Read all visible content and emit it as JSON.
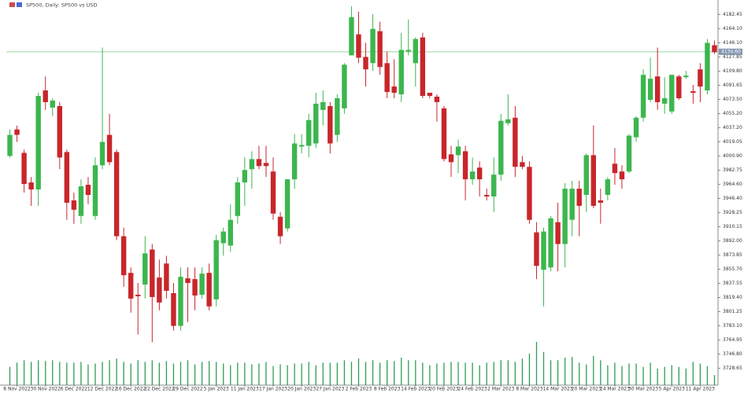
{
  "chart_data": {
    "type": "candlestick",
    "title": "SP500, Daily: SP500 vs USD",
    "up_color": "#3cb64e",
    "down_color": "#c8262b",
    "volume_color": "#2f9e52",
    "price_line_color": "#9fd49f",
    "ylim": [
      3707,
      4201
    ],
    "yticks": [
      {
        "value": 4182.45,
        "label": "4182.45"
      },
      {
        "value": 4164.1,
        "label": "4164.10"
      },
      {
        "value": 4146.1,
        "label": "4146.10"
      },
      {
        "value": 4127.85,
        "label": "4127.85"
      },
      {
        "value": 4109.8,
        "label": "4109.80"
      },
      {
        "value": 4091.65,
        "label": "4091.65"
      },
      {
        "value": 4073.5,
        "label": "4073.50"
      },
      {
        "value": 4055.2,
        "label": "4055.20"
      },
      {
        "value": 4037.2,
        "label": "4037.20"
      },
      {
        "value": 4019.05,
        "label": "4019.05"
      },
      {
        "value": 4000.9,
        "label": "4000.90"
      },
      {
        "value": 3982.75,
        "label": "3982.75"
      },
      {
        "value": 3964.6,
        "label": "3964.60"
      },
      {
        "value": 3946.4,
        "label": "3946.40"
      },
      {
        "value": 3928.25,
        "label": "3928.25"
      },
      {
        "value": 3910.15,
        "label": "3910.15"
      },
      {
        "value": 3892,
        "label": "3892.00"
      },
      {
        "value": 3873.85,
        "label": "3873.85"
      },
      {
        "value": 3855.7,
        "label": "3855.70"
      },
      {
        "value": 3837.55,
        "label": "3837.55"
      },
      {
        "value": 3819.4,
        "label": "3819.40"
      },
      {
        "value": 3801.25,
        "label": "3801.25"
      },
      {
        "value": 3783.1,
        "label": "3783.10"
      },
      {
        "value": 3764.95,
        "label": "3764.95"
      },
      {
        "value": 3746.8,
        "label": "3746.80"
      },
      {
        "value": 3728.65,
        "label": "3728.65"
      }
    ],
    "last_price": {
      "value": 4134.6,
      "label": "4134.60"
    },
    "categories": [
      null,
      "8 Nov 2022",
      null,
      null,
      null,
      "30 Nov 2022",
      null,
      null,
      null,
      "6 Dec 2022",
      null,
      null,
      null,
      "12 Dec 2022",
      null,
      null,
      null,
      "16 Dec 2022",
      null,
      null,
      null,
      "22 Dec 2022",
      null,
      null,
      null,
      "29 Dec 2022",
      null,
      null,
      null,
      "5 Jan 2023",
      null,
      null,
      null,
      "11 Jan 2023",
      null,
      null,
      null,
      "17 Jan 2023",
      null,
      null,
      null,
      "20 Jan 2023",
      null,
      null,
      null,
      "27 Jan 2023",
      null,
      null,
      null,
      "2 Feb 2023",
      null,
      null,
      null,
      "8 Feb 2023",
      null,
      null,
      null,
      "14 Feb 2023",
      null,
      null,
      null,
      "20 Feb 2023",
      null,
      null,
      null,
      "24 Feb 2023",
      null,
      null,
      null,
      "2 Mar 2023",
      null,
      null,
      null,
      "8 Mar 2023",
      null,
      null,
      null,
      "14 Mar 2023",
      null,
      null,
      null,
      "20 Mar 2023",
      null,
      null,
      null,
      "24 Mar 2023",
      null,
      null,
      null,
      "30 Mar 2023",
      null,
      null,
      null,
      "5 Apr 2023",
      null,
      null,
      null,
      "11 Apr 2023",
      null,
      null
    ],
    "ohlc": [
      [
        4001,
        4035,
        3999,
        4028
      ],
      [
        4035,
        4040,
        4019,
        4028
      ],
      [
        4005,
        4009,
        3954,
        3965
      ],
      [
        3967,
        3974,
        3937,
        3958
      ],
      [
        3958,
        4082,
        3937,
        4078
      ],
      [
        4085,
        4103,
        4060,
        4070
      ],
      [
        4063,
        4075,
        4052,
        4072
      ],
      [
        4065,
        4070,
        3984,
        3999
      ],
      [
        4006,
        4009,
        3919,
        3941
      ],
      [
        3944,
        3954,
        3914,
        3932
      ],
      [
        3924,
        3971,
        3914,
        3962
      ],
      [
        3964,
        3974,
        3939,
        3951
      ],
      [
        3924,
        3999,
        3919,
        3989
      ],
      [
        3989,
        4140,
        3984,
        4019
      ],
      [
        4028,
        4055,
        3989,
        3993
      ],
      [
        4006,
        4009,
        3893,
        3898
      ],
      [
        3898,
        3909,
        3833,
        3848
      ],
      [
        3851,
        3858,
        3800,
        3818
      ],
      [
        3823,
        3838,
        3772,
        3821
      ],
      [
        3836,
        3898,
        3818,
        3876
      ],
      [
        3881,
        3888,
        3762,
        3820
      ],
      [
        3845,
        3868,
        3803,
        3813
      ],
      [
        3863,
        3873,
        3818,
        3828
      ],
      [
        3825,
        3838,
        3777,
        3783
      ],
      [
        3783,
        3858,
        3777,
        3846
      ],
      [
        3844,
        3858,
        3788,
        3838
      ],
      [
        3843,
        3858,
        3803,
        3822
      ],
      [
        3823,
        3858,
        3818,
        3850
      ],
      [
        3851,
        3863,
        3803,
        3808
      ],
      [
        3817,
        3900,
        3808,
        3893
      ],
      [
        3889,
        3909,
        3873,
        3904
      ],
      [
        3886,
        3939,
        3878,
        3919
      ],
      [
        3924,
        3974,
        3914,
        3967
      ],
      [
        3967,
        3999,
        3937,
        3983
      ],
      [
        3984,
        4007,
        3959,
        3997
      ],
      [
        3997,
        4014,
        3984,
        3988
      ],
      [
        3992,
        4014,
        3974,
        3988
      ],
      [
        3981,
        3999,
        3919,
        3927
      ],
      [
        3923,
        3929,
        3888,
        3898
      ],
      [
        3908,
        3971,
        3904,
        3971
      ],
      [
        3971,
        4029,
        3959,
        4017
      ],
      [
        4013,
        4029,
        4004,
        4015
      ],
      [
        4014,
        4055,
        3999,
        4047
      ],
      [
        4017,
        4082,
        4011,
        4068
      ],
      [
        4060,
        4085,
        4040,
        4070
      ],
      [
        4065,
        4070,
        4004,
        4017
      ],
      [
        4028,
        4080,
        4019,
        4075
      ],
      [
        4062,
        4120,
        4055,
        4118
      ],
      [
        4130,
        4193,
        4130,
        4179
      ],
      [
        4157,
        4186,
        4120,
        4127
      ],
      [
        4128,
        4146,
        4090,
        4112
      ],
      [
        4120,
        4183,
        4110,
        4164
      ],
      [
        4161,
        4173,
        4105,
        4115
      ],
      [
        4120,
        4135,
        4075,
        4083
      ],
      [
        4090,
        4125,
        4075,
        4082
      ],
      [
        4080,
        4159,
        4070,
        4137
      ],
      [
        4135,
        4176,
        4130,
        4137
      ],
      [
        4120,
        4153,
        4090,
        4151
      ],
      [
        4153,
        4159,
        4075,
        4078
      ],
      [
        4082,
        4082,
        4075,
        4078
      ],
      [
        4077,
        4080,
        4045,
        4070
      ],
      [
        4062,
        4065,
        3994,
        3997
      ],
      [
        4003,
        4014,
        3974,
        3993
      ],
      [
        4002,
        4022,
        3979,
        4013
      ],
      [
        4007,
        4014,
        3944,
        3971
      ],
      [
        3971,
        3999,
        3964,
        3981
      ],
      [
        3986,
        3994,
        3949,
        3971
      ],
      [
        3951,
        3959,
        3944,
        3949
      ],
      [
        3949,
        3999,
        3929,
        3977
      ],
      [
        3977,
        4055,
        3969,
        4046
      ],
      [
        4043,
        4080,
        4040,
        4048
      ],
      [
        4050,
        4065,
        3974,
        3987
      ],
      [
        3993,
        4001,
        3984,
        3987
      ],
      [
        3987,
        3994,
        3914,
        3919
      ],
      [
        3903,
        3916,
        3843,
        3860
      ],
      [
        3855,
        3909,
        3808,
        3904
      ],
      [
        3858,
        3924,
        3853,
        3921
      ],
      [
        3916,
        3941,
        3853,
        3888
      ],
      [
        3888,
        3966,
        3858,
        3959
      ],
      [
        3919,
        3969,
        3898,
        3959
      ],
      [
        3959,
        3969,
        3898,
        3937
      ],
      [
        3951,
        4004,
        3929,
        4002
      ],
      [
        4002,
        4040,
        3934,
        3937
      ],
      [
        3944,
        3959,
        3914,
        3941
      ],
      [
        3951,
        3974,
        3944,
        3971
      ],
      [
        3991,
        4011,
        3964,
        3979
      ],
      [
        3981,
        3989,
        3959,
        3971
      ],
      [
        3981,
        4029,
        3979,
        4027
      ],
      [
        4025,
        4052,
        4019,
        4050
      ],
      [
        4050,
        4112,
        4045,
        4105
      ],
      [
        4073,
        4127,
        4070,
        4100
      ],
      [
        4103,
        4140,
        4060,
        4070
      ],
      [
        4068,
        4102,
        4055,
        4075
      ],
      [
        4058,
        4105,
        4055,
        4105
      ],
      [
        4103,
        4105,
        4073,
        4075
      ],
      [
        4102,
        4110,
        4100,
        4104
      ],
      [
        4084,
        4092,
        4068,
        4082
      ],
      [
        4112,
        4120,
        4070,
        4090
      ],
      [
        4085,
        4151,
        4080,
        4146
      ],
      [
        4143,
        4149,
        4132,
        4134
      ]
    ],
    "volume": [
      22,
      27,
      30,
      28,
      30,
      29,
      30,
      28,
      27,
      27,
      28,
      25,
      26,
      28,
      30,
      32,
      28,
      26,
      30,
      28,
      30,
      27,
      29,
      26,
      28,
      30,
      25,
      28,
      29,
      28,
      26,
      24,
      27,
      27,
      25,
      26,
      28,
      23,
      25,
      24,
      26,
      26,
      28,
      24,
      27,
      27,
      27,
      30,
      28,
      32,
      28,
      30,
      27,
      30,
      29,
      33,
      30,
      30,
      27,
      24,
      26,
      27,
      28,
      28,
      27,
      27,
      24,
      27,
      28,
      30,
      30,
      28,
      32,
      38,
      52,
      40,
      30,
      30,
      33,
      34,
      27,
      25,
      35,
      30,
      24,
      27,
      23,
      26,
      26,
      22,
      27,
      20,
      22,
      24,
      22,
      20,
      28,
      26,
      23,
      12
    ]
  }
}
